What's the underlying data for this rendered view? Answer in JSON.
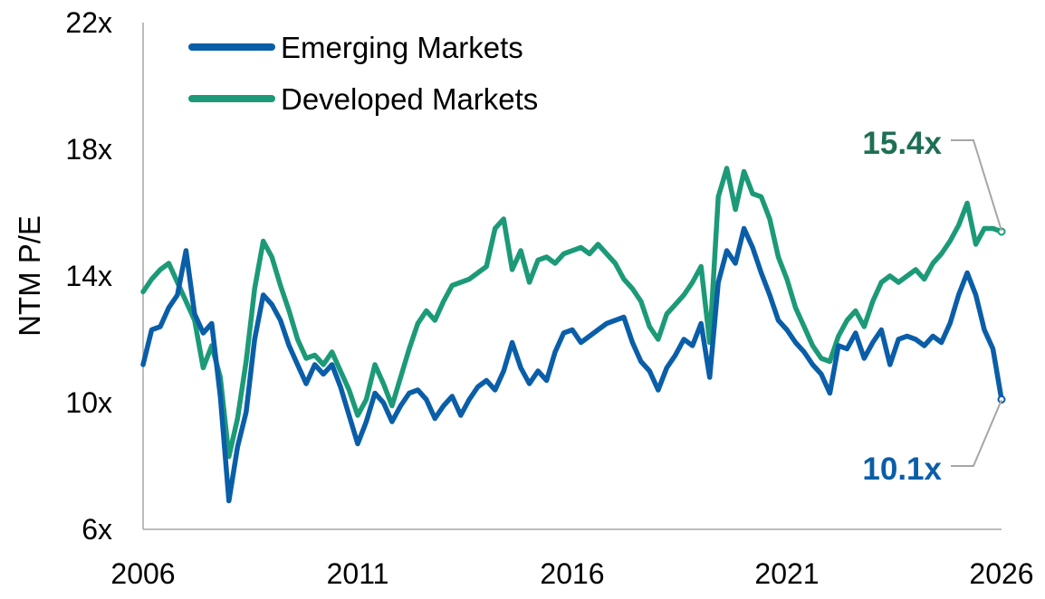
{
  "chart_data": {
    "type": "line",
    "title": "",
    "xlabel": "",
    "ylabel": "NTM P/E",
    "xlim": [
      2006,
      2026
    ],
    "ylim": [
      6,
      22
    ],
    "x_ticks": [
      "2006",
      "2011",
      "2016",
      "2021",
      "2026"
    ],
    "x_tick_values": [
      2006,
      2011,
      2016,
      2021,
      2026
    ],
    "y_ticks": [
      "6x",
      "10x",
      "14x",
      "18x",
      "22x"
    ],
    "y_tick_values": [
      6,
      10,
      14,
      18,
      22
    ],
    "grid": false,
    "legend_position": "top-left",
    "series": [
      {
        "name": "Emerging Markets",
        "color": "#0a5ea8",
        "end_label": "10.1x",
        "x": [
          2006.0,
          2006.2,
          2006.4,
          2006.6,
          2006.8,
          2007.0,
          2007.2,
          2007.4,
          2007.6,
          2007.8,
          2008.0,
          2008.2,
          2008.4,
          2008.6,
          2008.8,
          2009.0,
          2009.2,
          2009.4,
          2009.6,
          2009.8,
          2010.0,
          2010.2,
          2010.4,
          2010.6,
          2010.8,
          2011.0,
          2011.2,
          2011.4,
          2011.6,
          2011.8,
          2012.0,
          2012.2,
          2012.4,
          2012.6,
          2012.8,
          2013.0,
          2013.2,
          2013.4,
          2013.6,
          2013.8,
          2014.0,
          2014.2,
          2014.4,
          2014.6,
          2014.8,
          2015.0,
          2015.2,
          2015.4,
          2015.6,
          2015.8,
          2016.0,
          2016.2,
          2016.4,
          2016.6,
          2016.8,
          2017.0,
          2017.2,
          2017.4,
          2017.6,
          2017.8,
          2018.0,
          2018.2,
          2018.4,
          2018.6,
          2018.8,
          2019.0,
          2019.2,
          2019.4,
          2019.6,
          2019.8,
          2020.0,
          2020.2,
          2020.4,
          2020.6,
          2020.8,
          2021.0,
          2021.2,
          2021.4,
          2021.6,
          2021.8,
          2022.0,
          2022.2,
          2022.4,
          2022.6,
          2022.8,
          2023.0,
          2023.2,
          2023.4,
          2023.6,
          2023.8,
          2024.0,
          2024.2,
          2024.4,
          2024.6,
          2024.8,
          2025.0,
          2025.2,
          2025.4,
          2025.6,
          2025.8,
          2026.0
        ],
        "y": [
          11.2,
          12.3,
          12.4,
          13.0,
          13.4,
          14.8,
          12.8,
          12.2,
          12.5,
          10.2,
          6.9,
          8.6,
          9.7,
          12.0,
          13.4,
          13.1,
          12.6,
          11.8,
          11.2,
          10.6,
          11.2,
          10.9,
          11.2,
          10.5,
          9.6,
          8.7,
          9.4,
          10.3,
          10.0,
          9.4,
          9.9,
          10.3,
          10.4,
          10.1,
          9.5,
          9.9,
          10.2,
          9.6,
          10.1,
          10.5,
          10.7,
          10.4,
          11.0,
          11.9,
          11.1,
          10.6,
          11.0,
          10.7,
          11.6,
          12.2,
          12.3,
          11.9,
          12.1,
          12.3,
          12.5,
          12.6,
          12.7,
          11.9,
          11.3,
          11.0,
          10.4,
          11.1,
          11.5,
          12.0,
          11.8,
          12.5,
          10.8,
          13.8,
          14.8,
          14.4,
          15.5,
          14.9,
          14.1,
          13.4,
          12.6,
          12.3,
          11.9,
          11.6,
          11.2,
          10.9,
          10.3,
          11.8,
          11.7,
          12.2,
          11.4,
          11.9,
          12.3,
          11.2,
          12.0,
          12.1,
          12.0,
          11.8,
          12.1,
          11.9,
          12.5,
          13.4,
          14.1,
          13.4,
          12.3,
          11.7,
          10.1
        ]
      },
      {
        "name": "Developed Markets",
        "color": "#1c9a78",
        "end_label": "15.4x",
        "x": [
          2006.0,
          2006.2,
          2006.4,
          2006.6,
          2006.8,
          2007.0,
          2007.2,
          2007.4,
          2007.6,
          2007.8,
          2008.0,
          2008.2,
          2008.4,
          2008.6,
          2008.8,
          2009.0,
          2009.2,
          2009.4,
          2009.6,
          2009.8,
          2010.0,
          2010.2,
          2010.4,
          2010.6,
          2010.8,
          2011.0,
          2011.2,
          2011.4,
          2011.6,
          2011.8,
          2012.0,
          2012.2,
          2012.4,
          2012.6,
          2012.8,
          2013.0,
          2013.2,
          2013.4,
          2013.6,
          2013.8,
          2014.0,
          2014.2,
          2014.4,
          2014.6,
          2014.8,
          2015.0,
          2015.2,
          2015.4,
          2015.6,
          2015.8,
          2016.0,
          2016.2,
          2016.4,
          2016.6,
          2016.8,
          2017.0,
          2017.2,
          2017.4,
          2017.6,
          2017.8,
          2018.0,
          2018.2,
          2018.4,
          2018.6,
          2018.8,
          2019.0,
          2019.2,
          2019.4,
          2019.6,
          2019.8,
          2020.0,
          2020.2,
          2020.4,
          2020.6,
          2020.8,
          2021.0,
          2021.2,
          2021.4,
          2021.6,
          2021.8,
          2022.0,
          2022.2,
          2022.4,
          2022.6,
          2022.8,
          2023.0,
          2023.2,
          2023.4,
          2023.6,
          2023.8,
          2024.0,
          2024.2,
          2024.4,
          2024.6,
          2024.8,
          2025.0,
          2025.2,
          2025.4,
          2025.6,
          2025.8,
          2026.0
        ],
        "y": [
          13.5,
          13.9,
          14.2,
          14.4,
          13.8,
          13.2,
          12.6,
          11.1,
          11.8,
          10.8,
          8.3,
          9.5,
          11.3,
          13.6,
          15.1,
          14.6,
          13.7,
          12.9,
          12.0,
          11.4,
          11.5,
          11.2,
          11.6,
          11.0,
          10.4,
          9.6,
          10.1,
          11.2,
          10.6,
          9.9,
          10.8,
          11.7,
          12.5,
          12.9,
          12.6,
          13.2,
          13.7,
          13.8,
          13.9,
          14.1,
          14.3,
          15.5,
          15.8,
          14.2,
          14.8,
          13.8,
          14.5,
          14.6,
          14.4,
          14.7,
          14.8,
          14.9,
          14.7,
          15.0,
          14.7,
          14.4,
          13.9,
          13.6,
          13.2,
          12.4,
          12.0,
          12.8,
          13.1,
          13.4,
          13.8,
          14.3,
          11.9,
          16.5,
          17.4,
          16.1,
          17.3,
          16.6,
          16.5,
          15.8,
          14.6,
          13.9,
          13.0,
          12.4,
          11.8,
          11.4,
          11.3,
          12.1,
          12.6,
          12.9,
          12.4,
          13.2,
          13.8,
          14.0,
          13.8,
          14.0,
          14.2,
          13.9,
          14.4,
          14.7,
          15.1,
          15.6,
          16.3,
          15.0,
          15.5,
          15.5,
          15.4
        ]
      }
    ]
  }
}
